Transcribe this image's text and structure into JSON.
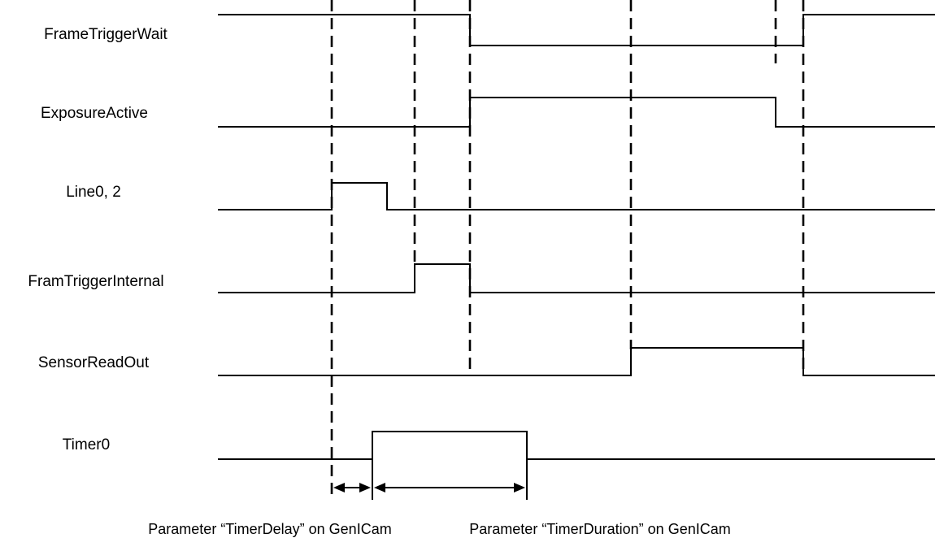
{
  "signals": [
    {
      "name": "FrameTriggerWait"
    },
    {
      "name": "ExposureActive"
    },
    {
      "name": "Line0, 2"
    },
    {
      "name": "FramTriggerInternal"
    },
    {
      "name": "SensorReadOut"
    },
    {
      "name": "Timer0"
    }
  ],
  "annotations": {
    "timer_delay": "Parameter “TimerDelay” on GenICam",
    "timer_duration": "Parameter “TimerDuration” on GenICam"
  }
}
